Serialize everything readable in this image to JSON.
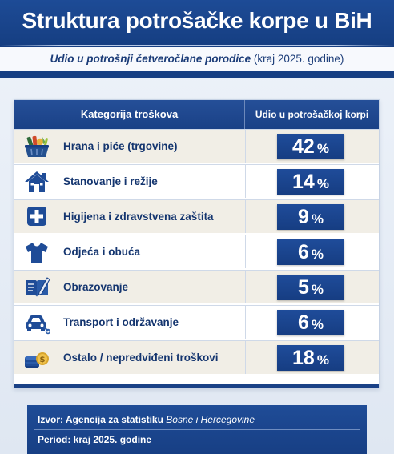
{
  "header": {
    "title": "Struktura potrošačke korpe u BiH",
    "subtitle_italic": "Udio u potrošnji četveročlane porodice",
    "subtitle_rest": " (kraj 2025. godine)"
  },
  "table": {
    "col1": "Kategorija troškova",
    "col2": "Udio u potrošačkoj korpi",
    "percent_symbol": "%",
    "rows": [
      {
        "icon": "grocery-basket-icon",
        "label": "Hrana i piće (trgovine)",
        "value": "42"
      },
      {
        "icon": "house-icon",
        "label": "Stanovanje i režije",
        "value": "14"
      },
      {
        "icon": "medical-cross-icon",
        "label": "Higijena i zdravstvena zaštita",
        "value": "9"
      },
      {
        "icon": "tshirt-icon",
        "label": "Odjeća i obuća",
        "value": "6"
      },
      {
        "icon": "book-pen-icon",
        "label": "Obrazovanje",
        "value": "5"
      },
      {
        "icon": "car-wrench-icon",
        "label": "Transport i održavanje",
        "value": "6"
      },
      {
        "icon": "coins-icon",
        "label": "Ostalo / nepredviđeni troškovi",
        "value": "18"
      }
    ]
  },
  "footer": {
    "source_label": "Izvor: Agencija za statistiku",
    "source_italic": " Bosne i Hercegovine",
    "period": "Period: kraj 2025. godine"
  },
  "colors": {
    "primary": "#1a4186",
    "row_alt": "#f1eee6",
    "text": "#14356f"
  }
}
